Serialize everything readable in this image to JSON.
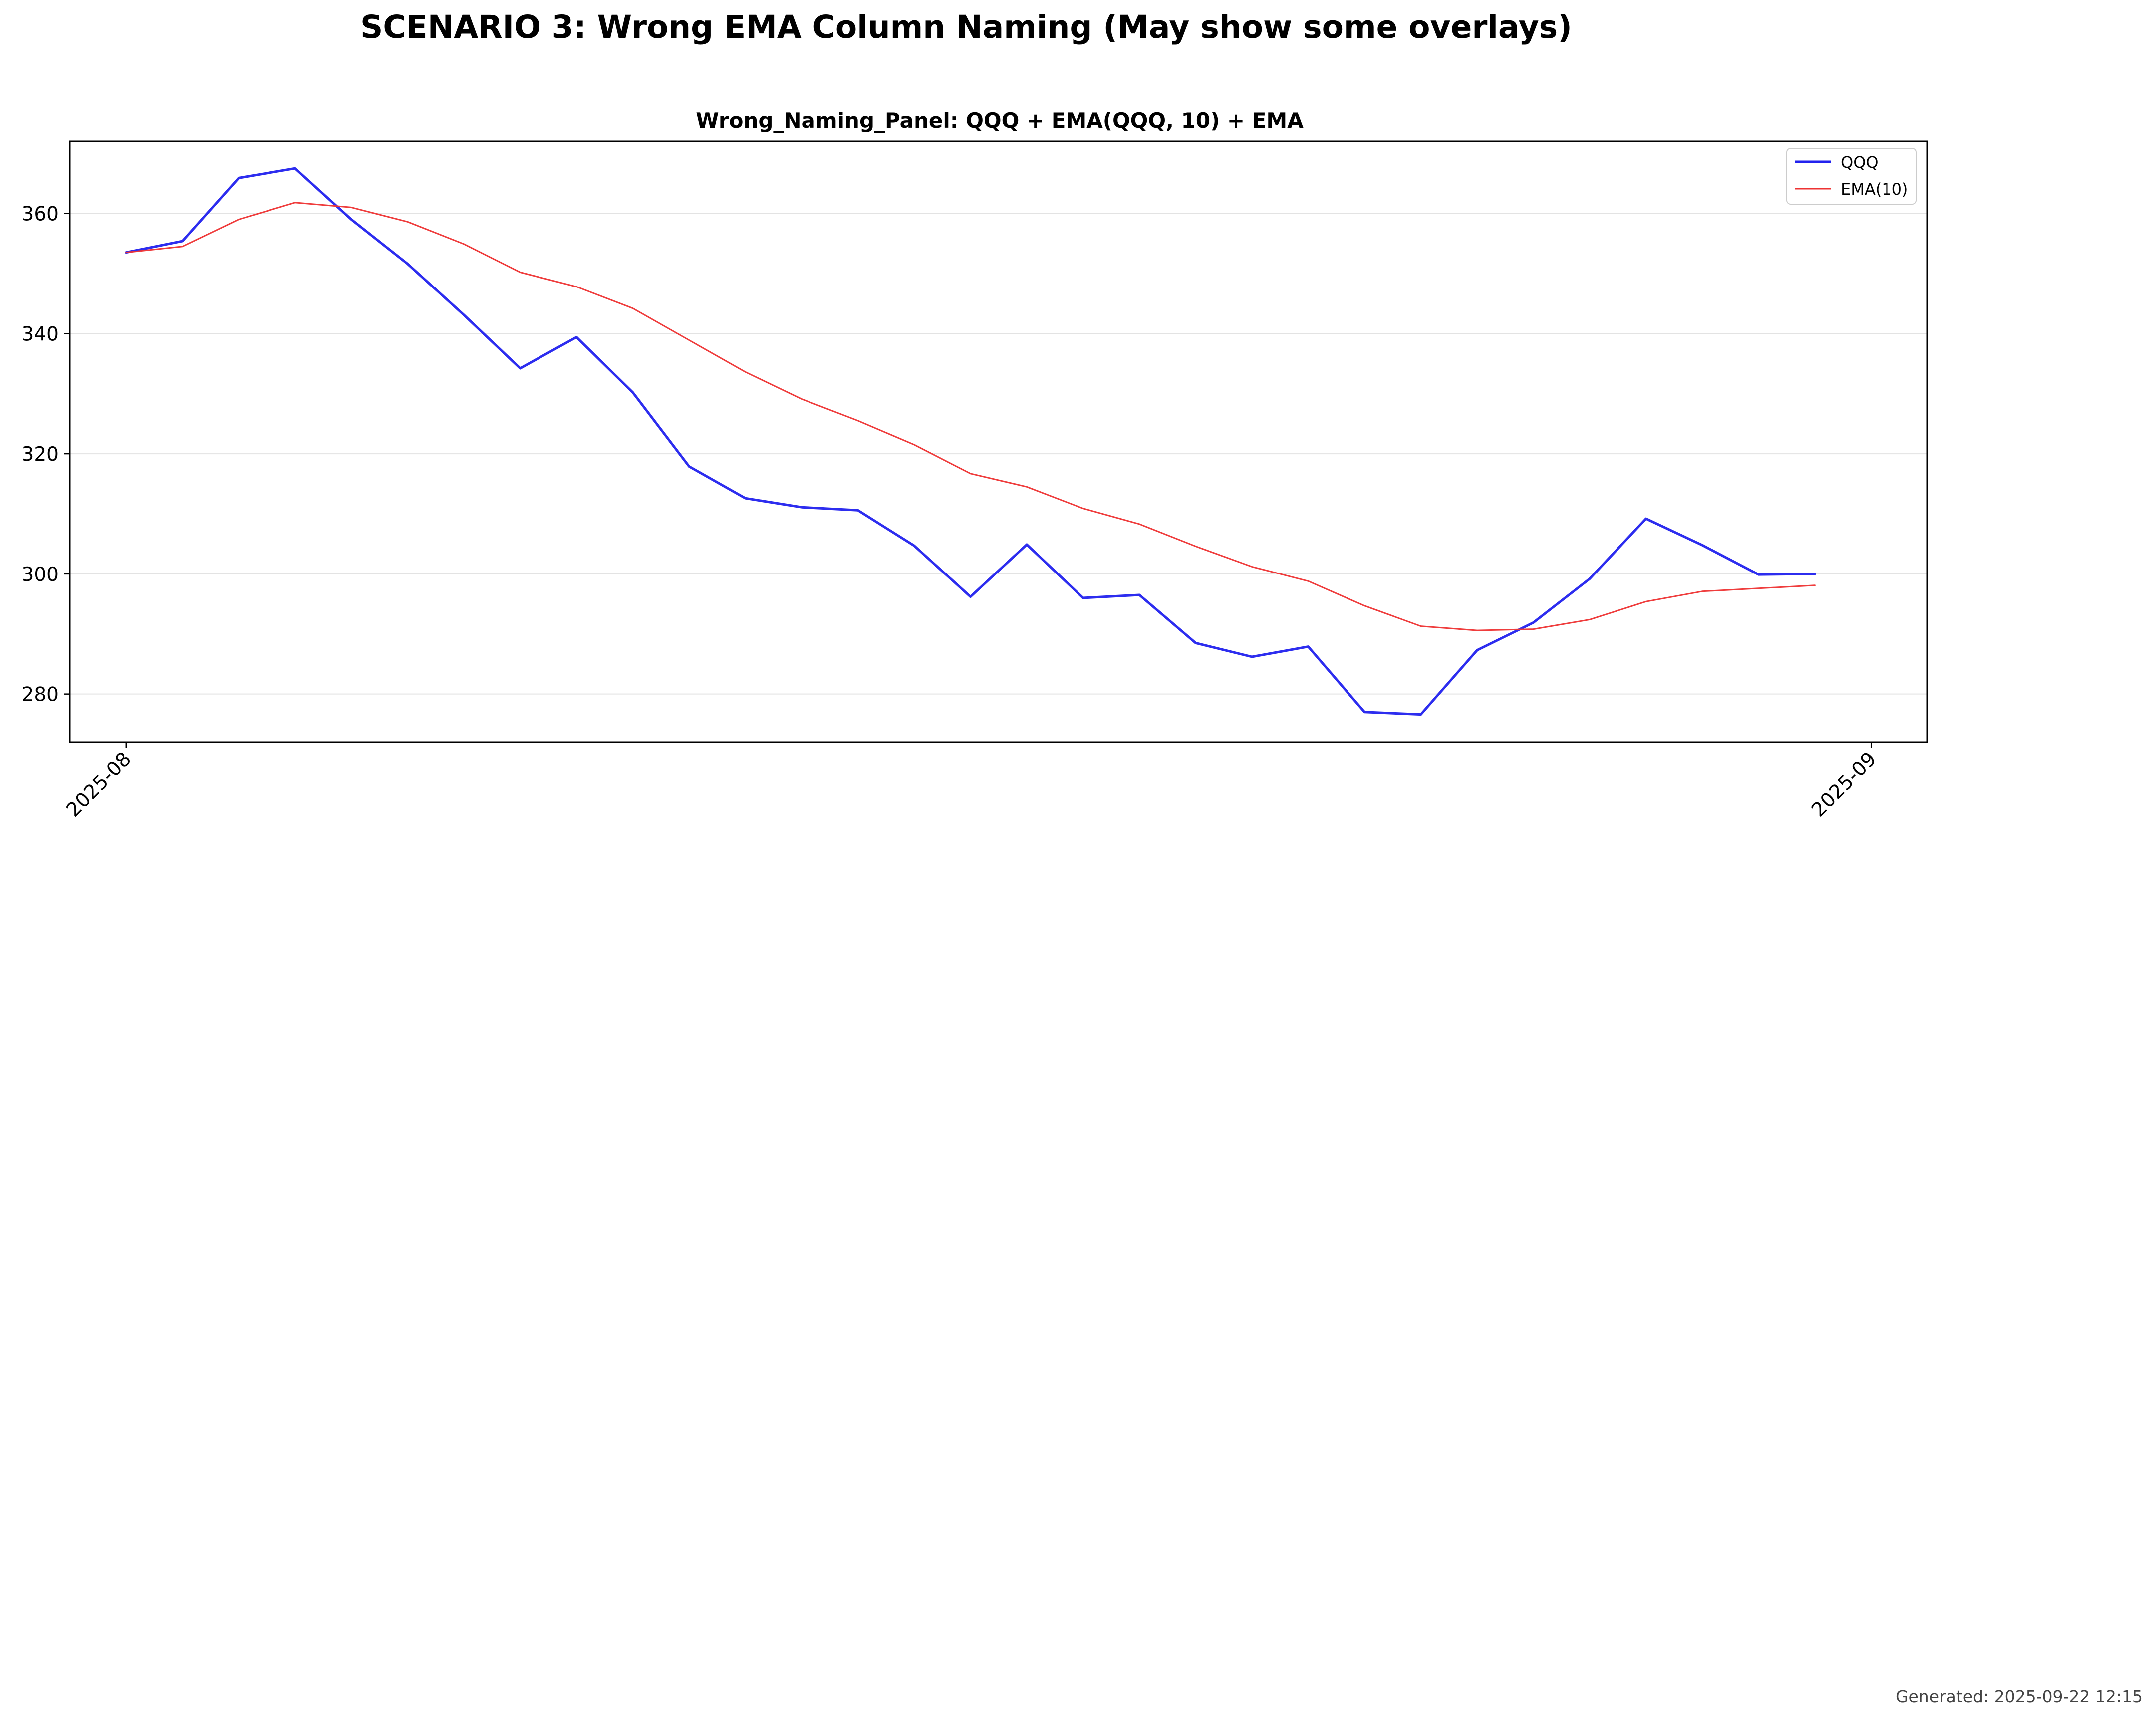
{
  "figure": {
    "suptitle": "SCENARIO 3: Wrong EMA Column Naming (May show some overlays)",
    "footer": "Generated: 2025-09-22 12:15"
  },
  "chart_data": {
    "type": "line",
    "title": "Wrong_Naming_Panel: QQQ + EMA(QQQ, 10) + EMA",
    "xlabel": "",
    "ylabel": "",
    "xlim": [
      "2025-07-31",
      "2025-09-02"
    ],
    "ylim": [
      272,
      372
    ],
    "x_ticks": [
      "2025-08",
      "2025-09"
    ],
    "y_ticks": [
      280,
      300,
      320,
      340,
      360
    ],
    "grid": "y",
    "legend": "top-right",
    "x": [
      "2025-08-01",
      "2025-08-02",
      "2025-08-03",
      "2025-08-04",
      "2025-08-05",
      "2025-08-06",
      "2025-08-07",
      "2025-08-08",
      "2025-08-09",
      "2025-08-10",
      "2025-08-11",
      "2025-08-12",
      "2025-08-13",
      "2025-08-14",
      "2025-08-15",
      "2025-08-16",
      "2025-08-17",
      "2025-08-18",
      "2025-08-19",
      "2025-08-20",
      "2025-08-21",
      "2025-08-22",
      "2025-08-23",
      "2025-08-24",
      "2025-08-25",
      "2025-08-26",
      "2025-08-27",
      "2025-08-28",
      "2025-08-29",
      "2025-08-30",
      "2025-08-31"
    ],
    "series": [
      {
        "name": "QQQ",
        "color": "#2222ee",
        "values": [
          353.5,
          355.4,
          365.9,
          367.5,
          359.0,
          351.6,
          343.1,
          334.2,
          339.4,
          330.2,
          317.9,
          312.6,
          311.1,
          310.6,
          304.7,
          296.2,
          304.9,
          296.0,
          296.5,
          288.5,
          286.2,
          287.9,
          277.0,
          276.6,
          287.3,
          291.9,
          299.2,
          309.2,
          304.8,
          299.9,
          300.0
        ]
      },
      {
        "name": "EMA(10)",
        "color": "#ee3333",
        "values": [
          353.5,
          354.5,
          359.0,
          361.8,
          361.0,
          358.6,
          354.9,
          350.2,
          347.8,
          344.2,
          338.9,
          333.6,
          329.1,
          325.5,
          321.5,
          316.7,
          314.5,
          310.9,
          308.3,
          304.6,
          301.2,
          298.8,
          294.7,
          291.3,
          290.6,
          290.8,
          292.4,
          295.4,
          297.1,
          297.6,
          298.1
        ]
      }
    ]
  }
}
